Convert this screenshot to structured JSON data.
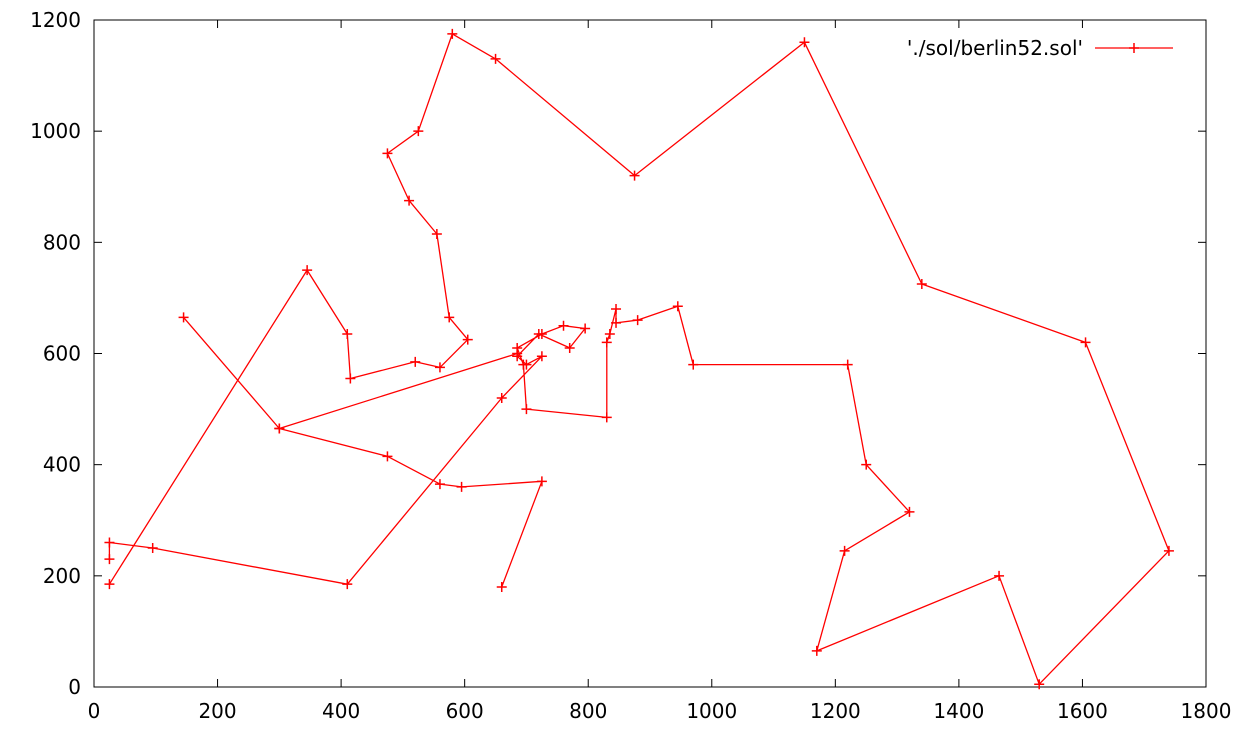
{
  "chart_data": {
    "type": "line",
    "title": "",
    "xlabel": "",
    "ylabel": "",
    "xlim": [
      0,
      1800
    ],
    "ylim": [
      0,
      1200
    ],
    "xticks": [
      0,
      200,
      400,
      600,
      800,
      1000,
      1200,
      1400,
      1600,
      1800
    ],
    "yticks": [
      0,
      200,
      400,
      600,
      800,
      1000,
      1200
    ],
    "grid": false,
    "legend_position": "top-right",
    "series": [
      {
        "name": "'./sol/berlin52.sol'",
        "color": "#ff0000",
        "marker": "plus",
        "x": [
          25,
          345,
          410,
          415,
          520,
          560,
          605,
          575,
          555,
          510,
          475,
          525,
          580,
          650,
          875,
          1150,
          1340,
          1605,
          1740,
          1530,
          1465,
          1170,
          1215,
          1320,
          1250,
          1220,
          970,
          945,
          880,
          845,
          845,
          835,
          830,
          830,
          700,
          695,
          685,
          725,
          760,
          795,
          770,
          720,
          685,
          700,
          725,
          660,
          410,
          95,
          25,
          25
        ],
        "y": [
          185,
          750,
          635,
          555,
          585,
          575,
          625,
          665,
          815,
          875,
          960,
          1000,
          1175,
          1130,
          920,
          1160,
          725,
          620,
          245,
          5,
          200,
          65,
          245,
          315,
          400,
          580,
          580,
          685,
          660,
          655,
          680,
          635,
          620,
          485,
          500,
          580,
          610,
          635,
          650,
          645,
          610,
          635,
          595,
          580,
          595,
          520,
          185,
          250,
          260,
          230
        ]
      },
      {
        "name": "",
        "color": "#ff0000",
        "marker": "plus",
        "x": [
          685,
          300,
          145
        ],
        "y": [
          600,
          465,
          665
        ]
      },
      {
        "name": "",
        "color": "#ff0000",
        "marker": "plus",
        "x": [
          660,
          725,
          595,
          560,
          475,
          300
        ],
        "y": [
          180,
          370,
          360,
          365,
          415,
          465
        ]
      }
    ]
  }
}
